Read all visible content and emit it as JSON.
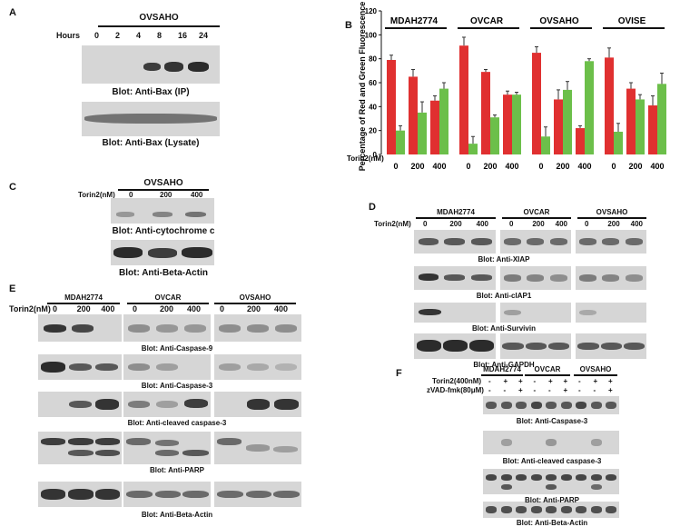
{
  "panelA": {
    "label": "A",
    "header": "OVSAHO",
    "hours_label": "Hours",
    "hours": [
      "0",
      "2",
      "4",
      "8",
      "16",
      "24"
    ],
    "captions": [
      "Blot: Anti-Bax (IP)",
      "Blot: Anti-Bax (Lysate)"
    ]
  },
  "panelB": {
    "label": "B",
    "ylabel": "Percentage of Red and Green Fluorescence",
    "groups": [
      "MDAH2774",
      "OVCAR",
      "OVSAHO",
      "OVISE"
    ],
    "torin_label": "Torin2(nM)",
    "doses": [
      "0",
      "200",
      "400"
    ],
    "colors": {
      "red": "#e03030",
      "green": "#6cbf4a"
    }
  },
  "chart_data": {
    "type": "bar",
    "categories": [
      "MDAH2774 0",
      "MDAH2774 200",
      "MDAH2774 400",
      "OVCAR 0",
      "OVCAR 200",
      "OVCAR 400",
      "OVSAHO 0",
      "OVSAHO 200",
      "OVSAHO 400",
      "OVISE 0",
      "OVISE 200",
      "OVISE 400"
    ],
    "series": [
      {
        "values": [
          79,
          65,
          45,
          91,
          69,
          50,
          85,
          46,
          22,
          81,
          55,
          41
        ]
      },
      {
        "values": [
          20,
          35,
          55,
          9,
          31,
          50,
          15,
          54,
          78,
          19,
          46,
          59
        ]
      }
    ],
    "errors": [
      [
        4,
        6,
        4,
        7,
        2,
        3,
        5,
        8,
        2,
        8,
        5,
        8
      ],
      [
        4,
        9,
        5,
        6,
        2,
        2,
        8,
        7,
        2,
        7,
        4,
        9
      ]
    ],
    "ylabel": "Percentage of Red and Green Fluorescence",
    "ylim": [
      0,
      120
    ],
    "yticks": [
      "0",
      "20",
      "40",
      "60",
      "80",
      "100",
      "120"
    ]
  },
  "panelC": {
    "label": "C",
    "header": "OVSAHO",
    "torin_label": "Torin2(nM)",
    "doses": [
      "0",
      "200",
      "400"
    ],
    "captions": [
      "Blot: Anti-cytochrome c",
      "Blot: Anti-Beta-Actin"
    ]
  },
  "panelD": {
    "label": "D",
    "groups": [
      "MDAH2774",
      "OVCAR",
      "OVSAHO"
    ],
    "torin_label": "Torin2(nM)",
    "doses": [
      "0",
      "200",
      "400"
    ],
    "captions": [
      "Blot: Anti-XIAP",
      "Blot: Anti-cIAP1",
      "Blot: Anti-Survivin",
      "Blot: Anti-GAPDH"
    ]
  },
  "panelE": {
    "label": "E",
    "groups": [
      "MDAH2774",
      "OVCAR",
      "OVSAHO"
    ],
    "torin_label": "Torin2(nM)",
    "doses": [
      "0",
      "200",
      "400"
    ],
    "captions": [
      "Blot: Anti-Caspase-9",
      "Blot: Anti-Caspase-3",
      "Blot: Anti-cleaved caspase-3",
      "Blot: Anti-PARP",
      "Blot: Anti-Beta-Actin"
    ]
  },
  "panelF": {
    "label": "F",
    "groups": [
      "MDAH2774",
      "OVCAR",
      "OVSAHO"
    ],
    "row1_label": "Torin2(400nM)",
    "row2_label": "zVAD-fmk(80μM)",
    "row1_signs": [
      "-",
      "+",
      "+",
      "-",
      "+",
      "+",
      "-",
      "+",
      "+"
    ],
    "row2_signs": [
      "-",
      "-",
      "+",
      "-",
      "-",
      "+",
      "-",
      "-",
      "+"
    ],
    "captions": [
      "Blot: Anti-Caspase-3",
      "Blot: Anti-cleaved caspase-3",
      "Blot: Anti-PARP",
      "Blot: Anti-Beta-Actin"
    ]
  }
}
